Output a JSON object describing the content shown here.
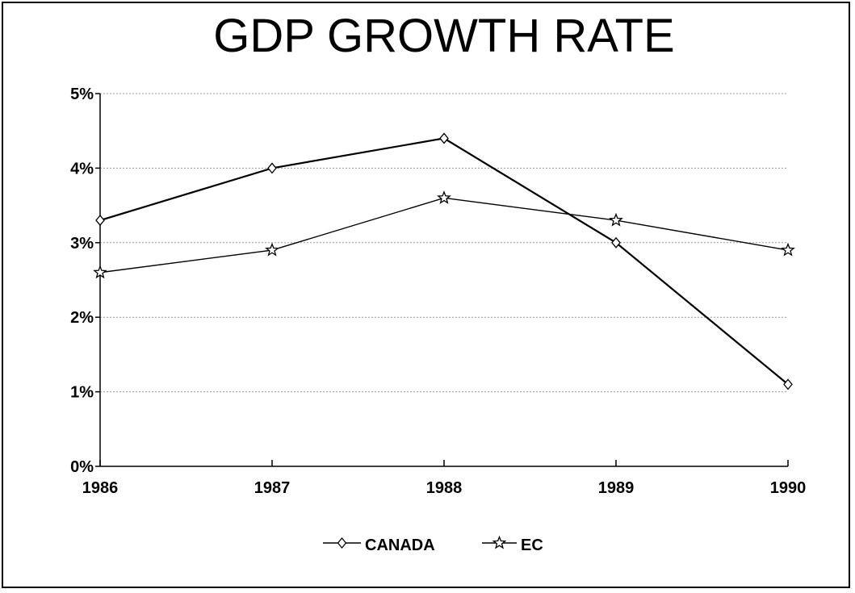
{
  "chart_data": {
    "type": "line",
    "title": "GDP GROWTH RATE",
    "x": [
      "1986",
      "1987",
      "1988",
      "1989",
      "1990"
    ],
    "y_ticks": [
      "0%",
      "1%",
      "2%",
      "3%",
      "4%",
      "5%"
    ],
    "ylim": [
      0,
      5
    ],
    "grid": true,
    "legend_position": "bottom-center",
    "series": [
      {
        "name": "CANADA",
        "marker": "diamond",
        "values": [
          3.3,
          4.0,
          4.4,
          3.0,
          1.1
        ],
        "color": "#000000"
      },
      {
        "name": "EC",
        "marker": "star",
        "values": [
          2.6,
          2.9,
          3.6,
          3.3,
          2.9
        ],
        "color": "#000000"
      }
    ]
  }
}
